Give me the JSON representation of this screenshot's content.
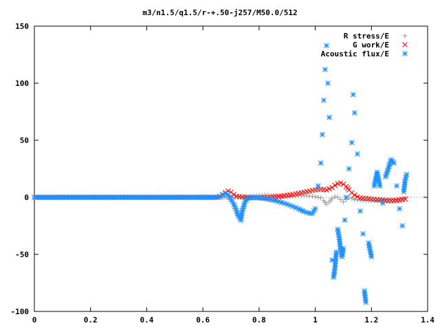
{
  "chart_data": {
    "type": "scatter",
    "title": "m3/n1.5/q1.5/r-+.50-j257/M50.0/512",
    "xlabel": "",
    "ylabel": "",
    "xlim": [
      0,
      1.4
    ],
    "ylim": [
      -100,
      150
    ],
    "x_ticks": [
      "0",
      "0.2",
      "0.4",
      "0.6",
      "0.8",
      "1",
      "1.2",
      "1.4"
    ],
    "y_ticks": [
      "-100",
      "-50",
      "0",
      "50",
      "100",
      "150"
    ],
    "grid": false,
    "legend_position": "top-right",
    "series": [
      {
        "name": "R stress/E",
        "marker": "plus",
        "color": "#a0a0a0",
        "points": [
          [
            0.7,
            0.0
          ],
          [
            0.75,
            0.2
          ],
          [
            0.78,
            1.0
          ],
          [
            0.8,
            1.8
          ],
          [
            0.82,
            2.0
          ],
          [
            0.85,
            1.5
          ],
          [
            0.88,
            1.0
          ],
          [
            0.9,
            0.8
          ],
          [
            0.92,
            0.9
          ],
          [
            0.94,
            1.2
          ],
          [
            0.96,
            1.4
          ],
          [
            0.98,
            1.0
          ],
          [
            1.0,
            0.5
          ],
          [
            1.02,
            -0.5
          ],
          [
            1.03,
            -3.0
          ],
          [
            1.04,
            -6.0
          ],
          [
            1.05,
            -4.0
          ],
          [
            1.06,
            -1.0
          ],
          [
            1.07,
            0.5
          ],
          [
            1.08,
            0.0
          ],
          [
            1.09,
            -2.0
          ],
          [
            1.1,
            -4.0
          ],
          [
            1.11,
            -2.0
          ],
          [
            1.12,
            0.0
          ],
          [
            1.13,
            -1.0
          ],
          [
            1.14,
            -2.0
          ],
          [
            1.16,
            -2.5
          ],
          [
            1.18,
            -3.0
          ],
          [
            1.2,
            -3.0
          ],
          [
            1.22,
            -3.0
          ],
          [
            1.24,
            -2.5
          ],
          [
            1.26,
            -2.0
          ],
          [
            1.28,
            -2.0
          ],
          [
            1.3,
            -1.5
          ],
          [
            1.32,
            -0.5
          ]
        ]
      },
      {
        "name": "G work/E",
        "marker": "cross",
        "color": "#ff0000",
        "points": [
          [
            0.66,
            1.0
          ],
          [
            0.67,
            2.5
          ],
          [
            0.68,
            4.0
          ],
          [
            0.69,
            5.5
          ],
          [
            0.7,
            4.5
          ],
          [
            0.71,
            2.5
          ],
          [
            0.72,
            1.0
          ],
          [
            0.74,
            0.3
          ],
          [
            0.76,
            0.0
          ],
          [
            0.78,
            -0.3
          ],
          [
            0.8,
            -0.5
          ],
          [
            0.82,
            -0.4
          ],
          [
            0.84,
            0.0
          ],
          [
            0.86,
            0.5
          ],
          [
            0.88,
            1.0
          ],
          [
            0.9,
            1.8
          ],
          [
            0.92,
            2.5
          ],
          [
            0.94,
            3.5
          ],
          [
            0.96,
            4.5
          ],
          [
            0.98,
            5.5
          ],
          [
            1.0,
            6.5
          ],
          [
            1.02,
            7.0
          ],
          [
            1.04,
            6.5
          ],
          [
            1.06,
            8.5
          ],
          [
            1.07,
            10.5
          ],
          [
            1.08,
            12.0
          ],
          [
            1.09,
            12.5
          ],
          [
            1.1,
            11.5
          ],
          [
            1.11,
            9.5
          ],
          [
            1.12,
            6.5
          ],
          [
            1.13,
            4.0
          ],
          [
            1.14,
            2.0
          ],
          [
            1.15,
            0.5
          ],
          [
            1.16,
            -0.5
          ],
          [
            1.18,
            -1.0
          ],
          [
            1.2,
            -1.5
          ],
          [
            1.22,
            -2.0
          ],
          [
            1.24,
            -2.5
          ],
          [
            1.26,
            -3.0
          ],
          [
            1.28,
            -3.0
          ],
          [
            1.3,
            -2.5
          ],
          [
            1.32,
            -1.5
          ]
        ]
      },
      {
        "name": "Acoustic flux/E",
        "marker": "star",
        "color": "#1e90ff",
        "points": [
          [
            0.66,
            0.5
          ],
          [
            0.67,
            2.0
          ],
          [
            0.68,
            3.5
          ],
          [
            0.69,
            2.0
          ],
          [
            0.7,
            -2.0
          ],
          [
            0.71,
            -6.0
          ],
          [
            0.72,
            -12.0
          ],
          [
            0.725,
            -16.0
          ],
          [
            0.73,
            -18.0
          ],
          [
            0.735,
            -20.0
          ],
          [
            0.74,
            -12.0
          ],
          [
            0.75,
            -4.0
          ],
          [
            0.76,
            -1.0
          ],
          [
            0.78,
            0.0
          ],
          [
            0.8,
            -0.5
          ],
          [
            0.82,
            -1.0
          ],
          [
            0.84,
            -2.0
          ],
          [
            0.86,
            -3.0
          ],
          [
            0.88,
            -4.5
          ],
          [
            0.9,
            -6.0
          ],
          [
            0.92,
            -8.0
          ],
          [
            0.94,
            -10.0
          ],
          [
            0.96,
            -12.5
          ],
          [
            0.98,
            -14.0
          ],
          [
            0.99,
            -14.0
          ],
          [
            1.0,
            -10.0
          ],
          [
            1.01,
            10.0
          ],
          [
            1.02,
            30.0
          ],
          [
            1.025,
            55.0
          ],
          [
            1.03,
            85.0
          ],
          [
            1.035,
            112.0
          ],
          [
            1.04,
            133.0
          ],
          [
            1.045,
            100.0
          ],
          [
            1.05,
            70.0
          ],
          [
            1.06,
            -55.0
          ],
          [
            1.065,
            -70.0
          ],
          [
            1.07,
            -62.0
          ],
          [
            1.075,
            -48.0
          ],
          [
            1.08,
            -28.0
          ],
          [
            1.085,
            -35.0
          ],
          [
            1.09,
            -45.0
          ],
          [
            1.095,
            -52.0
          ],
          [
            1.1,
            -45.0
          ],
          [
            1.105,
            -20.0
          ],
          [
            1.11,
            0.0
          ],
          [
            1.12,
            25.0
          ],
          [
            1.13,
            48.0
          ],
          [
            1.135,
            90.0
          ],
          [
            1.14,
            74.0
          ],
          [
            1.15,
            38.0
          ],
          [
            1.16,
            -12.0
          ],
          [
            1.17,
            -32.0
          ],
          [
            1.175,
            -82.0
          ],
          [
            1.18,
            -92.0
          ],
          [
            1.19,
            -40.0
          ],
          [
            1.2,
            -52.0
          ],
          [
            1.21,
            10.0
          ],
          [
            1.22,
            22.0
          ],
          [
            1.23,
            10.0
          ],
          [
            1.24,
            -5.0
          ],
          [
            1.25,
            18.0
          ],
          [
            1.26,
            25.0
          ],
          [
            1.27,
            33.0
          ],
          [
            1.28,
            30.0
          ],
          [
            1.29,
            10.0
          ],
          [
            1.3,
            -10.0
          ],
          [
            1.31,
            -25.0
          ],
          [
            1.315,
            5.0
          ],
          [
            1.32,
            15.0
          ],
          [
            1.325,
            20.0
          ]
        ]
      }
    ]
  }
}
